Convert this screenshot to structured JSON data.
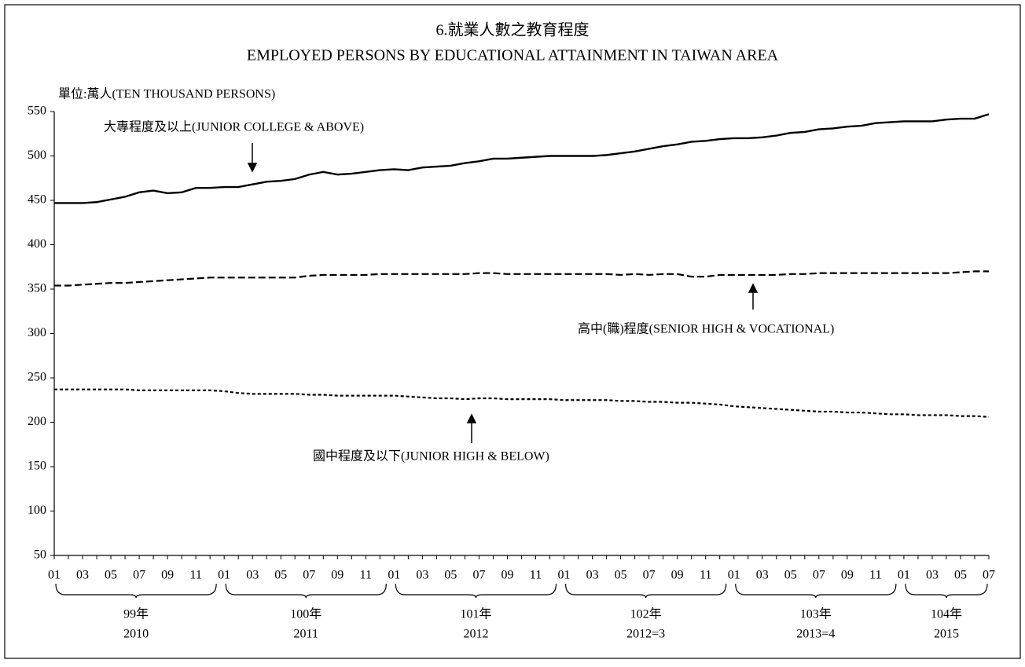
{
  "chart_data": {
    "type": "line",
    "title": "6.就業人數之教育程度",
    "subtitle": "EMPLOYED PERSONS BY EDUCATIONAL ATTAINMENT IN TAIWAN AREA",
    "y_axis_label": "單位:萬人(TEN  THOUSAND PERSONS)",
    "categories": [
      "01",
      null,
      "03",
      null,
      "05",
      null,
      "07",
      null,
      "09",
      null,
      "11",
      null,
      "01",
      null,
      "03",
      null,
      "05",
      null,
      "07",
      null,
      "09",
      null,
      "11",
      null,
      "01",
      null,
      "03",
      null,
      "05",
      null,
      "07",
      null,
      "09",
      null,
      "11",
      null,
      "01",
      null,
      "03",
      null,
      "05",
      null,
      "07",
      null,
      "09",
      null,
      "11",
      null,
      "01",
      null,
      "03",
      null,
      "05",
      null,
      "07",
      null,
      "09",
      null,
      "11",
      null,
      "01",
      null,
      "03",
      null,
      "05",
      null,
      "07"
    ],
    "year_groups": [
      {
        "roc": "99年",
        "ad": "2010"
      },
      {
        "roc": "100年",
        "ad": "2011"
      },
      {
        "roc": "101年",
        "ad": "2012"
      },
      {
        "roc": "102年",
        "ad": "2012=3"
      },
      {
        "roc": "103年",
        "ad": "2013=4"
      },
      {
        "roc": "104年",
        "ad": "2015"
      }
    ],
    "series": [
      {
        "name": "大專程度及以上(JUNIOR COLLEGE  & ABOVE)",
        "color": "#000000",
        "dash": "solid",
        "values": [
          447,
          447,
          447,
          448,
          451,
          454,
          459,
          461,
          458,
          459,
          464,
          464,
          465,
          465,
          468,
          471,
          472,
          474,
          479,
          482,
          479,
          480,
          482,
          484,
          485,
          484,
          487,
          488,
          489,
          492,
          494,
          497,
          497,
          498,
          499,
          500,
          500,
          500,
          500,
          501,
          503,
          505,
          508,
          511,
          513,
          516,
          517,
          519,
          520,
          520,
          521,
          523,
          526,
          527,
          530,
          531,
          533,
          534,
          537,
          538,
          539,
          539,
          539,
          541,
          542,
          542,
          547
        ]
      },
      {
        "name": "高中(職)程度(SENIOR  HIGH & VOCATIONAL)",
        "color": "#000000",
        "dash": "long",
        "values": [
          354,
          354,
          355,
          356,
          357,
          357,
          358,
          359,
          360,
          361,
          362,
          363,
          363,
          363,
          363,
          363,
          363,
          363,
          365,
          366,
          366,
          366,
          366,
          367,
          367,
          367,
          367,
          367,
          367,
          367,
          368,
          368,
          367,
          367,
          367,
          367,
          367,
          367,
          367,
          367,
          366,
          367,
          366,
          367,
          367,
          364,
          364,
          366,
          366,
          366,
          366,
          366,
          367,
          367,
          368,
          368,
          368,
          368,
          368,
          368,
          368,
          368,
          368,
          368,
          369,
          370,
          370
        ]
      },
      {
        "name": "國中程度及以下(JUNIOR  HIGH & BELOW)",
        "color": "#000000",
        "dash": "short",
        "values": [
          237,
          237,
          237,
          237,
          237,
          237,
          236,
          236,
          236,
          236,
          236,
          236,
          235,
          233,
          232,
          232,
          232,
          232,
          231,
          231,
          230,
          230,
          230,
          230,
          230,
          229,
          228,
          227,
          227,
          226,
          227,
          227,
          226,
          226,
          226,
          226,
          225,
          225,
          225,
          225,
          224,
          224,
          223,
          223,
          222,
          222,
          221,
          220,
          218,
          217,
          216,
          215,
          214,
          213,
          212,
          212,
          211,
          211,
          210,
          209,
          209,
          208,
          208,
          208,
          207,
          207,
          206
        ]
      }
    ],
    "ylim": [
      50,
      550
    ],
    "yticks": [
      50,
      100,
      150,
      200,
      250,
      300,
      350,
      400,
      450,
      500,
      550
    ],
    "grid": false
  }
}
